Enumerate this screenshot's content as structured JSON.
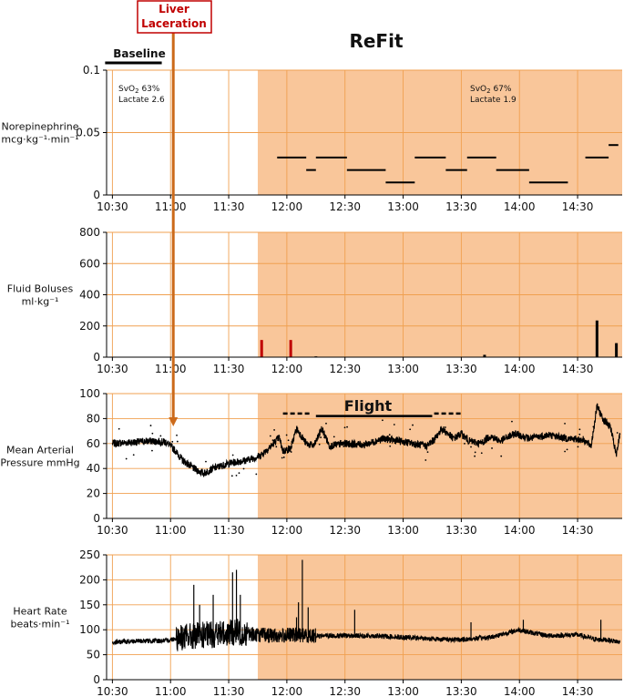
{
  "figure_title": "ReFit",
  "colors": {
    "refit_shade": "#f9c69a",
    "grid": "#f0a050",
    "arrow": "#cc6a1a",
    "liver_border": "#c00000",
    "bolus_red": "#c00000",
    "trace": "#000000"
  },
  "annotations": {
    "baseline_label": "Baseline",
    "baseline_span": [
      "10:30",
      "10:55"
    ],
    "liver_label_line1": "Liver",
    "liver_label_line2": "Laceration",
    "liver_time": "11:00",
    "refit_start": "11:45",
    "baseline_note": {
      "svo2": "SvO",
      "sub": "2",
      "svo2_value": " 63%",
      "lactate": "Lactate 2.6"
    },
    "refit_note": {
      "svo2": "SvO",
      "sub": "2",
      "svo2_value": " 67%",
      "lactate": "Lactate 1.9"
    },
    "flight_label": "Flight",
    "flight_span": [
      "12:15",
      "13:15"
    ],
    "flight_pre_dashes": [
      "11:58",
      "12:13"
    ],
    "flight_post_dashes": [
      "13:16",
      "13:31"
    ]
  },
  "chart_data": [
    {
      "type": "line",
      "id": "norepinephrine",
      "ylabel_line1": "Norepinephrine",
      "ylabel_line2": "mcg·kg⁻¹·min⁻¹",
      "ylim": [
        0,
        0.1
      ],
      "yticks": [
        0,
        0.05,
        0.1
      ],
      "ytick_labels": [
        "0",
        "0.05",
        "0.1"
      ],
      "xticks": [
        "10:30",
        "11:00",
        "11:30",
        "12:00",
        "12:30",
        "13:00",
        "13:30",
        "14:00",
        "14:30"
      ],
      "xlim": [
        "10:27",
        "14:53"
      ],
      "segments": [
        {
          "start": "11:55",
          "end": "12:10",
          "value": 0.03
        },
        {
          "start": "12:10",
          "end": "12:15",
          "value": 0.02
        },
        {
          "start": "12:15",
          "end": "12:31",
          "value": 0.03
        },
        {
          "start": "12:31",
          "end": "12:51",
          "value": 0.02
        },
        {
          "start": "12:51",
          "end": "13:06",
          "value": 0.01
        },
        {
          "start": "13:06",
          "end": "13:22",
          "value": 0.03
        },
        {
          "start": "13:22",
          "end": "13:33",
          "value": 0.02
        },
        {
          "start": "13:33",
          "end": "13:48",
          "value": 0.03
        },
        {
          "start": "13:48",
          "end": "14:05",
          "value": 0.02
        },
        {
          "start": "14:05",
          "end": "14:25",
          "value": 0.01
        },
        {
          "start": "14:34",
          "end": "14:46",
          "value": 0.03
        },
        {
          "start": "14:46",
          "end": "14:51",
          "value": 0.04
        }
      ]
    },
    {
      "type": "bar",
      "id": "fluid_boluses",
      "ylabel_line1": "Fluid Boluses",
      "ylabel_line2": "ml·kg⁻¹",
      "ylim": [
        0,
        800
      ],
      "yticks": [
        0,
        200,
        400,
        600,
        800
      ],
      "ytick_labels": [
        "0",
        "200",
        "400",
        "600",
        "800"
      ],
      "xticks": [
        "10:30",
        "11:00",
        "11:30",
        "12:00",
        "12:30",
        "13:00",
        "13:30",
        "14:00",
        "14:30"
      ],
      "xlim": [
        "10:27",
        "14:53"
      ],
      "bars": [
        {
          "time": "11:47",
          "value": 110,
          "color": "red"
        },
        {
          "time": "12:02",
          "value": 110,
          "color": "red"
        },
        {
          "time": "12:15",
          "value": 5,
          "color": "black"
        },
        {
          "time": "13:42",
          "value": 15,
          "color": "black"
        },
        {
          "time": "14:40",
          "value": 235,
          "color": "black"
        },
        {
          "time": "14:50",
          "value": 90,
          "color": "black"
        }
      ]
    },
    {
      "type": "line",
      "id": "map",
      "ylabel_line1": "Mean Arterial",
      "ylabel_line2": "Pressure mmHg",
      "ylim": [
        0,
        100
      ],
      "yticks": [
        0,
        20,
        40,
        60,
        80,
        100
      ],
      "ytick_labels": [
        "0",
        "20",
        "40",
        "60",
        "80",
        "100"
      ],
      "xticks": [
        "10:30",
        "11:00",
        "11:30",
        "12:00",
        "12:30",
        "13:00",
        "13:30",
        "14:00",
        "14:30"
      ],
      "xlim": [
        "10:27",
        "14:53"
      ],
      "series_points": [
        [
          "10:30",
          60
        ],
        [
          "10:40",
          61
        ],
        [
          "10:50",
          62
        ],
        [
          "10:58",
          61
        ],
        [
          "11:02",
          55
        ],
        [
          "11:06",
          47
        ],
        [
          "11:12",
          40
        ],
        [
          "11:17",
          36
        ],
        [
          "11:22",
          40
        ],
        [
          "11:30",
          44
        ],
        [
          "11:40",
          47
        ],
        [
          "11:46",
          50
        ],
        [
          "11:52",
          58
        ],
        [
          "11:56",
          65
        ],
        [
          "11:58",
          54
        ],
        [
          "12:02",
          56
        ],
        [
          "12:05",
          72
        ],
        [
          "12:10",
          60
        ],
        [
          "12:14",
          58
        ],
        [
          "12:18",
          72
        ],
        [
          "12:22",
          58
        ],
        [
          "12:30",
          60
        ],
        [
          "12:40",
          59
        ],
        [
          "12:50",
          64
        ],
        [
          "12:58",
          62
        ],
        [
          "13:05",
          60
        ],
        [
          "13:12",
          58
        ],
        [
          "13:16",
          63
        ],
        [
          "13:20",
          72
        ],
        [
          "13:26",
          64
        ],
        [
          "13:30",
          68
        ],
        [
          "13:34",
          62
        ],
        [
          "13:40",
          60
        ],
        [
          "13:45",
          66
        ],
        [
          "13:50",
          62
        ],
        [
          "13:58",
          68
        ],
        [
          "14:05",
          64
        ],
        [
          "14:15",
          67
        ],
        [
          "14:25",
          64
        ],
        [
          "14:33",
          63
        ],
        [
          "14:37",
          58
        ],
        [
          "14:40",
          90
        ],
        [
          "14:43",
          80
        ],
        [
          "14:47",
          73
        ],
        [
          "14:50",
          50
        ],
        [
          "14:52",
          70
        ]
      ]
    },
    {
      "type": "line",
      "id": "heart_rate",
      "ylabel_line1": "Heart Rate",
      "ylabel_line2": "beats·min⁻¹",
      "ylim": [
        0,
        250
      ],
      "yticks": [
        0,
        50,
        100,
        150,
        200,
        250
      ],
      "ytick_labels": [
        "0",
        "50",
        "100",
        "150",
        "200",
        "250"
      ],
      "xticks": [
        "10:30",
        "11:00",
        "11:30",
        "12:00",
        "12:30",
        "13:00",
        "13:30",
        "14:00",
        "14:30"
      ],
      "xlim": [
        "10:27",
        "14:53"
      ],
      "series_points": [
        [
          "10:30",
          75
        ],
        [
          "10:40",
          77
        ],
        [
          "10:50",
          78
        ],
        [
          "10:58",
          78
        ],
        [
          "11:05",
          85
        ],
        [
          "11:15",
          88
        ],
        [
          "11:25",
          92
        ],
        [
          "11:35",
          95
        ],
        [
          "11:45",
          90
        ],
        [
          "11:55",
          88
        ],
        [
          "12:05",
          90
        ],
        [
          "12:15",
          88
        ],
        [
          "12:30",
          88
        ],
        [
          "12:45",
          88
        ],
        [
          "13:00",
          85
        ],
        [
          "13:15",
          82
        ],
        [
          "13:30",
          80
        ],
        [
          "13:45",
          85
        ],
        [
          "14:00",
          100
        ],
        [
          "14:05",
          95
        ],
        [
          "14:15",
          88
        ],
        [
          "14:30",
          90
        ],
        [
          "14:40",
          80
        ],
        [
          "14:45",
          80
        ],
        [
          "14:52",
          75
        ]
      ],
      "spikes": [
        [
          "11:12",
          190
        ],
        [
          "11:15",
          150
        ],
        [
          "11:22",
          170
        ],
        [
          "11:32",
          215
        ],
        [
          "11:34",
          220
        ],
        [
          "11:36",
          170
        ],
        [
          "12:05",
          125
        ],
        [
          "12:06",
          155
        ],
        [
          "12:08",
          240
        ],
        [
          "12:11",
          145
        ],
        [
          "12:35",
          140
        ],
        [
          "13:35",
          115
        ],
        [
          "14:02",
          120
        ],
        [
          "14:42",
          120
        ]
      ]
    }
  ]
}
